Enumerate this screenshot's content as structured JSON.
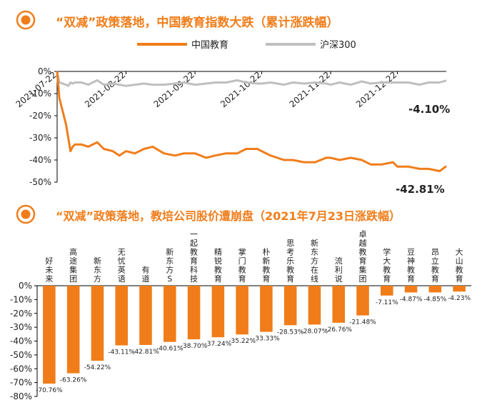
{
  "colors": {
    "accent": "#F07D1A",
    "grey": "#BFBFBF",
    "axis": "#000000",
    "text": "#222222"
  },
  "chart_data": [
    {
      "type": "line",
      "title": "“双减”政策落地，中国教育指数大跌（累计涨跌幅）",
      "x": [
        "2021-07-22",
        "2021-07-23",
        "2021-07-26",
        "2021-07-27",
        "2021-07-28",
        "2021-07-29",
        "2021-07-30",
        "2021-08-02",
        "2021-08-05",
        "2021-08-09",
        "2021-08-12",
        "2021-08-16",
        "2021-08-19",
        "2021-08-22",
        "2021-08-26",
        "2021-08-30",
        "2021-09-03",
        "2021-09-08",
        "2021-09-13",
        "2021-09-17",
        "2021-09-22",
        "2021-09-27",
        "2021-10-01",
        "2021-10-06",
        "2021-10-11",
        "2021-10-15",
        "2021-10-20",
        "2021-10-22",
        "2021-10-26",
        "2021-11-01",
        "2021-11-05",
        "2021-11-10",
        "2021-11-15",
        "2021-11-20",
        "2021-11-22",
        "2021-11-26",
        "2021-12-01",
        "2021-12-06",
        "2021-12-10",
        "2021-12-15",
        "2021-12-20",
        "2021-12-22",
        "2021-12-27",
        "2022-01-01",
        "2022-01-05",
        "2022-01-10",
        "2022-01-13"
      ],
      "series": [
        {
          "name": "中国教育",
          "values": [
            0,
            -12,
            -24,
            -30,
            -36,
            -34,
            -33,
            -33,
            -34,
            -32,
            -35,
            -36,
            -38,
            -36,
            -37,
            -35,
            -34,
            -37,
            -38,
            -37,
            -37,
            -39,
            -38,
            -37,
            -37,
            -35,
            -35,
            -36,
            -38,
            -40,
            -40,
            -41,
            -41,
            -39,
            -39,
            -40,
            -39,
            -40,
            -42,
            -42,
            -41,
            -43,
            -43,
            -44,
            -44,
            -45,
            -42.81
          ]
        },
        {
          "name": "沪深300",
          "values": [
            0,
            -5,
            -6,
            -6.5,
            -5,
            -5.5,
            -5,
            -5,
            -6,
            -4,
            -6,
            -5.5,
            -6,
            -6.5,
            -6,
            -5.5,
            -6,
            -6,
            -5.5,
            -5,
            -6,
            -5.5,
            -5,
            -5,
            -4,
            -5,
            -5.5,
            -5.5,
            -5,
            -6,
            -5,
            -5.5,
            -5,
            -5.5,
            -6,
            -5,
            -6,
            -4.5,
            -5.5,
            -5,
            -5,
            -5,
            -5,
            -6,
            -5,
            -5,
            -4.1
          ]
        }
      ],
      "xticks": [
        "2021-07-22",
        "2021-08-22",
        "2021-09-22",
        "2021-10-22",
        "2021-11-22",
        "2021-12-22"
      ],
      "ylim": [
        -50,
        0
      ],
      "yticks": [
        0,
        -10,
        -20,
        -30,
        -40,
        -50
      ],
      "ytick_labels": [
        "0%",
        "-10%",
        "-20%",
        "-30%",
        "-40%",
        "-50%"
      ],
      "annotations": [
        "-4.10%",
        "-42.81%"
      ],
      "legend_position": "top"
    },
    {
      "type": "bar",
      "title": "“双减”政策落地，教培公司股价遭崩盘（2021年7月23日涨跌幅）",
      "categories": [
        "好未来",
        "高途集团",
        "新东方",
        "无忧英语",
        "有道",
        "新东方S",
        "一起教育科技",
        "精锐教育",
        "掌门教育",
        "朴新教育",
        "思考乐教育",
        "新东方在线",
        "流利说",
        "卓越教育集团",
        "学大教育",
        "豆神教育",
        "昂立教育",
        "大山教育"
      ],
      "values": [
        -70.76,
        -63.26,
        -54.22,
        -43.11,
        -42.81,
        -40.61,
        -38.7,
        -37.24,
        -35.22,
        -33.33,
        -28.53,
        -28.07,
        -26.76,
        -21.48,
        -7.11,
        -4.87,
        -4.85,
        -4.23
      ],
      "labels": [
        "-70.76%",
        "-63.26%",
        "-54.22%",
        "-43.11%",
        "-42.81%",
        "-40.61%",
        "-38.70%",
        "-37.24%",
        "-35.22%",
        "-33.33%",
        "-28.53%",
        "-28.07%",
        "-26.76%",
        "-21.48%",
        "-7.11%",
        "-4.87%",
        "-4.85%",
        "-4.23%"
      ],
      "ylim": [
        -80,
        0
      ],
      "yticks": [
        0,
        -10,
        -20,
        -30,
        -40,
        -50,
        -60,
        -70,
        -80
      ],
      "ytick_labels": [
        "0%",
        "-10%",
        "-20%",
        "-30%",
        "-40%",
        "-50%",
        "-60%",
        "-70%",
        "-80%"
      ]
    }
  ]
}
